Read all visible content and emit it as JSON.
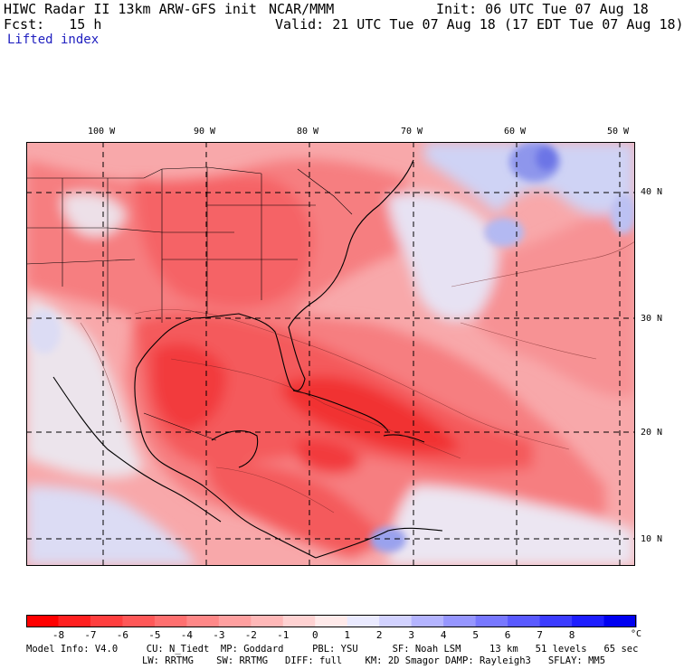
{
  "header": {
    "title": "HIWC Radar II 13km ARW-GFS init",
    "org": "NCAR/MMM",
    "init": "Init: 06 UTC Tue 07 Aug 18",
    "fcst": "Fcst:   15 h",
    "valid": "Valid: 21 UTC Tue 07 Aug 18 (17 EDT Tue 07 Aug 18)",
    "field": "Lifted index"
  },
  "map": {
    "lon_labels": [
      "100 W",
      "90 W",
      "80 W",
      "70 W",
      "60 W",
      "50 W"
    ],
    "lat_labels": [
      "40 N",
      "30 N",
      "20 N",
      "10 N"
    ],
    "colors": {
      "deep_red": "#ff1a1a",
      "mid_red": "#f55656",
      "light_red": "#f79090",
      "pink": "#fbc7c7",
      "near_white": "#f6f0f3",
      "light_blue": "#d9dcf6",
      "mid_blue": "#aab2f0",
      "deep_blue": "#7076ea"
    }
  },
  "colorbar": {
    "ticks": [
      "-8",
      "-7",
      "-6",
      "-5",
      "-4",
      "-3",
      "-2",
      "-1",
      "0",
      "1",
      "2",
      "3",
      "4",
      "5",
      "6",
      "7",
      "8"
    ],
    "unit": "°C",
    "colors": [
      "#ff0000",
      "#ff2020",
      "#ff3f3f",
      "#ff5858",
      "#ff7070",
      "#ff8888",
      "#ffa0a0",
      "#ffb8b8",
      "#ffd2d2",
      "#ffeaea",
      "#eaeaff",
      "#d2d2ff",
      "#b4b4ff",
      "#9696ff",
      "#7878ff",
      "#5a5aff",
      "#3c3cff",
      "#1e1eff",
      "#0000f0"
    ]
  },
  "footer": {
    "line1": "Model Info: V4.0     CU: N_Tiedt  MP: Goddard     PBL: YSU      SF: Noah LSM     13 km   51 levels   65 sec",
    "line2": "LW: RRTMG    SW: RRTMG   DIFF: full    KM: 2D Smagor DAMP: Rayleigh3   SFLAY: MM5"
  }
}
